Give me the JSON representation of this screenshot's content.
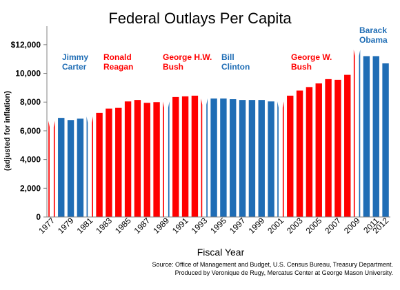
{
  "chart_data": {
    "type": "bar",
    "title": "Federal Outlays Per Capita",
    "xlabel": "Fiscal Year",
    "ylabel": "(adjusted for inflation)",
    "ylim": [
      0,
      13000
    ],
    "yticks": [
      0,
      2000,
      4000,
      6000,
      8000,
      10000,
      12000
    ],
    "ytick_labels": [
      "0",
      "2,000",
      "4,000",
      "6,000",
      "8,000",
      "10,000",
      "$12,000"
    ],
    "categories": [
      "1977",
      "1978",
      "1979",
      "1980",
      "1981",
      "1982",
      "1983",
      "1984",
      "1985",
      "1986",
      "1987",
      "1988",
      "1989",
      "1990",
      "1991",
      "1992",
      "1993",
      "1994",
      "1995",
      "1996",
      "1997",
      "1998",
      "1999",
      "2000",
      "2001",
      "2002",
      "2003",
      "2004",
      "2005",
      "2006",
      "2007",
      "2008",
      "2009",
      "2010",
      "2011",
      "2012"
    ],
    "xtick_labels": [
      "1977",
      "1979",
      "1981",
      "1983",
      "1985",
      "1987",
      "1989",
      "1991",
      "1993",
      "1995",
      "1997",
      "1999",
      "2001",
      "2003",
      "2005",
      "2007",
      "2009",
      "2011",
      "2012"
    ],
    "values": [
      6700,
      6900,
      6750,
      6850,
      7000,
      7250,
      7550,
      7600,
      8050,
      8150,
      7950,
      8000,
      8050,
      8350,
      8400,
      8450,
      8250,
      8250,
      8250,
      8200,
      8150,
      8150,
      8150,
      8050,
      8050,
      8450,
      8800,
      9050,
      9300,
      9600,
      9550,
      9900,
      11650,
      11200,
      11200,
      10700
    ],
    "colors": {
      "republican": "#ff0000",
      "democrat": "#1f6db5"
    },
    "bar_party": [
      "R",
      "D",
      "D",
      "D",
      "D",
      "R",
      "R",
      "R",
      "R",
      "R",
      "R",
      "R",
      "R",
      "R",
      "R",
      "R",
      "R",
      "D",
      "D",
      "D",
      "D",
      "D",
      "D",
      "D",
      "D",
      "R",
      "R",
      "R",
      "R",
      "R",
      "R",
      "R",
      "R",
      "D",
      "D",
      "D"
    ],
    "transition_years": [
      "1977",
      "1981",
      "1989",
      "1993",
      "2001",
      "2009"
    ],
    "grid": false,
    "annotations": [
      {
        "lines": [
          "Jimmy",
          "Carter"
        ],
        "party": "democrat"
      },
      {
        "lines": [
          "Ronald",
          "Reagan"
        ],
        "party": "republican"
      },
      {
        "lines": [
          "George H.W.",
          "Bush"
        ],
        "party": "republican"
      },
      {
        "lines": [
          "Bill",
          "Clinton"
        ],
        "party": "democrat"
      },
      {
        "lines": [
          "George W.",
          "Bush"
        ],
        "party": "republican"
      },
      {
        "lines": [
          "Barack",
          "Obama"
        ],
        "party": "democrat"
      }
    ]
  },
  "source_note": [
    "Source: Office of Management and Budget, U.S. Census Bureau, Treasury Department.",
    "Produced by Veronique de Rugy, Mercatus Center at George Mason University."
  ]
}
